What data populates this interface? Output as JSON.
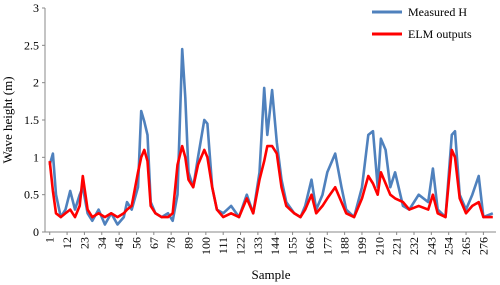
{
  "chart_data": {
    "type": "line",
    "y_label": "Wave height (m)",
    "x_label": "Sample",
    "x": [
      1,
      3,
      5,
      8,
      11,
      14,
      17,
      20,
      22,
      25,
      28,
      32,
      36,
      40,
      44,
      48,
      50,
      53,
      57,
      59,
      61,
      63,
      65,
      68,
      72,
      76,
      79,
      82,
      85,
      87,
      89,
      92,
      95,
      99,
      101,
      104,
      107,
      111,
      116,
      121,
      126,
      130,
      134,
      137,
      139,
      142,
      145,
      148,
      151,
      156,
      160,
      163,
      167,
      170,
      174,
      177,
      182,
      186,
      189,
      194,
      199,
      203,
      206,
      209,
      211,
      214,
      217,
      220,
      225,
      229,
      235,
      241,
      244,
      247,
      252,
      256,
      258,
      261,
      265,
      269,
      273,
      276,
      282
    ],
    "series": [
      {
        "name": "Measured H",
        "color": "#4f81bd",
        "values": [
          0.9,
          1.05,
          0.5,
          0.2,
          0.3,
          0.55,
          0.3,
          0.5,
          0.6,
          0.25,
          0.15,
          0.3,
          0.1,
          0.25,
          0.1,
          0.2,
          0.4,
          0.3,
          0.6,
          1.62,
          1.48,
          1.3,
          0.4,
          0.25,
          0.2,
          0.25,
          0.15,
          0.5,
          2.45,
          1.8,
          0.8,
          0.6,
          1.0,
          1.5,
          1.45,
          0.6,
          0.3,
          0.25,
          0.35,
          0.2,
          0.5,
          0.25,
          0.8,
          1.93,
          1.3,
          1.9,
          1.2,
          0.7,
          0.4,
          0.25,
          0.2,
          0.35,
          0.7,
          0.3,
          0.5,
          0.8,
          1.05,
          0.6,
          0.3,
          0.2,
          0.6,
          1.3,
          1.35,
          0.6,
          1.25,
          1.1,
          0.6,
          0.8,
          0.35,
          0.3,
          0.5,
          0.4,
          0.85,
          0.3,
          0.2,
          1.3,
          1.35,
          0.5,
          0.3,
          0.5,
          0.75,
          0.2,
          0.25
        ]
      },
      {
        "name": "ELM outputs",
        "color": "#ff0000",
        "values": [
          0.95,
          0.55,
          0.25,
          0.2,
          0.25,
          0.3,
          0.2,
          0.35,
          0.75,
          0.3,
          0.2,
          0.25,
          0.2,
          0.25,
          0.2,
          0.25,
          0.3,
          0.35,
          0.8,
          1.0,
          1.1,
          0.95,
          0.35,
          0.25,
          0.2,
          0.2,
          0.25,
          0.9,
          1.15,
          1.0,
          0.7,
          0.6,
          0.9,
          1.1,
          1.0,
          0.6,
          0.3,
          0.2,
          0.25,
          0.2,
          0.45,
          0.25,
          0.7,
          0.95,
          1.15,
          1.15,
          1.05,
          0.6,
          0.35,
          0.25,
          0.2,
          0.3,
          0.5,
          0.25,
          0.35,
          0.45,
          0.6,
          0.4,
          0.25,
          0.2,
          0.45,
          0.75,
          0.65,
          0.5,
          0.8,
          0.65,
          0.5,
          0.45,
          0.4,
          0.3,
          0.35,
          0.3,
          0.5,
          0.25,
          0.2,
          1.1,
          1.0,
          0.45,
          0.25,
          0.35,
          0.4,
          0.2,
          0.2
        ]
      }
    ],
    "xlim": [
      -2,
      284
    ],
    "xticks": [
      1,
      12,
      23,
      34,
      45,
      56,
      67,
      78,
      89,
      100,
      111,
      122,
      133,
      144,
      155,
      166,
      177,
      188,
      199,
      210,
      221,
      232,
      243,
      254,
      265,
      276
    ],
    "ylim": [
      0,
      3
    ],
    "yticks": [
      0,
      0.5,
      1,
      1.5,
      2,
      2.5,
      3
    ],
    "grid": false,
    "legend": "top-right"
  }
}
